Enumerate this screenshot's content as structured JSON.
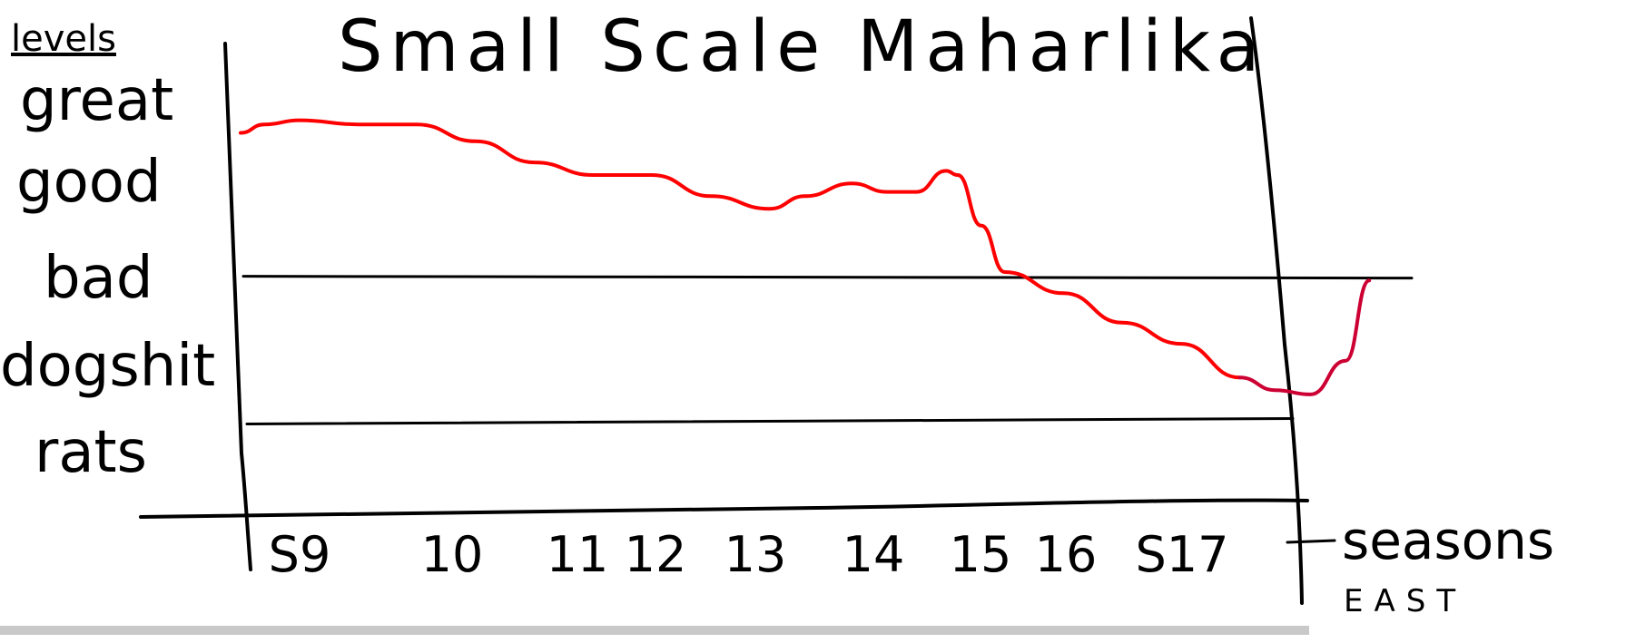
{
  "chart_data": {
    "type": "line",
    "title": "Small Scale Maharlika",
    "xlabel": "seasons",
    "ylabel": "levels",
    "categories": [
      "S9",
      "10",
      "11",
      "12",
      "13",
      "14",
      "15",
      "16",
      "S17"
    ],
    "y_levels": [
      "great",
      "good",
      "bad",
      "dogshit",
      "rats"
    ],
    "series": [
      {
        "color": "#ff0000",
        "x": [
          8.5,
          8.7,
          9,
          9.5,
          10,
          10.5,
          11,
          11.5,
          12,
          12.5,
          13,
          13.3,
          13.7,
          14,
          14.25,
          14.5,
          14.6,
          14.8,
          15,
          15.5,
          16,
          16.5,
          17
        ],
        "y": [
          4.3,
          4.4,
          4.45,
          4.4,
          4.4,
          4.2,
          3.95,
          3.8,
          3.8,
          3.55,
          3.4,
          3.55,
          3.7,
          3.6,
          3.6,
          3.85,
          3.8,
          3.2,
          2.65,
          2.4,
          2.05,
          1.8,
          1.4
        ]
      },
      {
        "color": "#cc0033",
        "x": [
          17,
          17.3,
          17.6,
          17.9,
          18.1
        ],
        "y": [
          1.4,
          1.25,
          1.2,
          1.6,
          2.55
        ]
      }
    ],
    "reference_lines": [
      {
        "color": "#000000",
        "y": 2.6
      },
      {
        "color": "#000000",
        "y": 0.85
      }
    ],
    "ylim": [
      0.5,
      4.8
    ],
    "xlim": [
      8.4,
      18.5
    ],
    "grid": false,
    "legend": "none"
  },
  "annotations": {
    "below_seasons": "EAST"
  }
}
